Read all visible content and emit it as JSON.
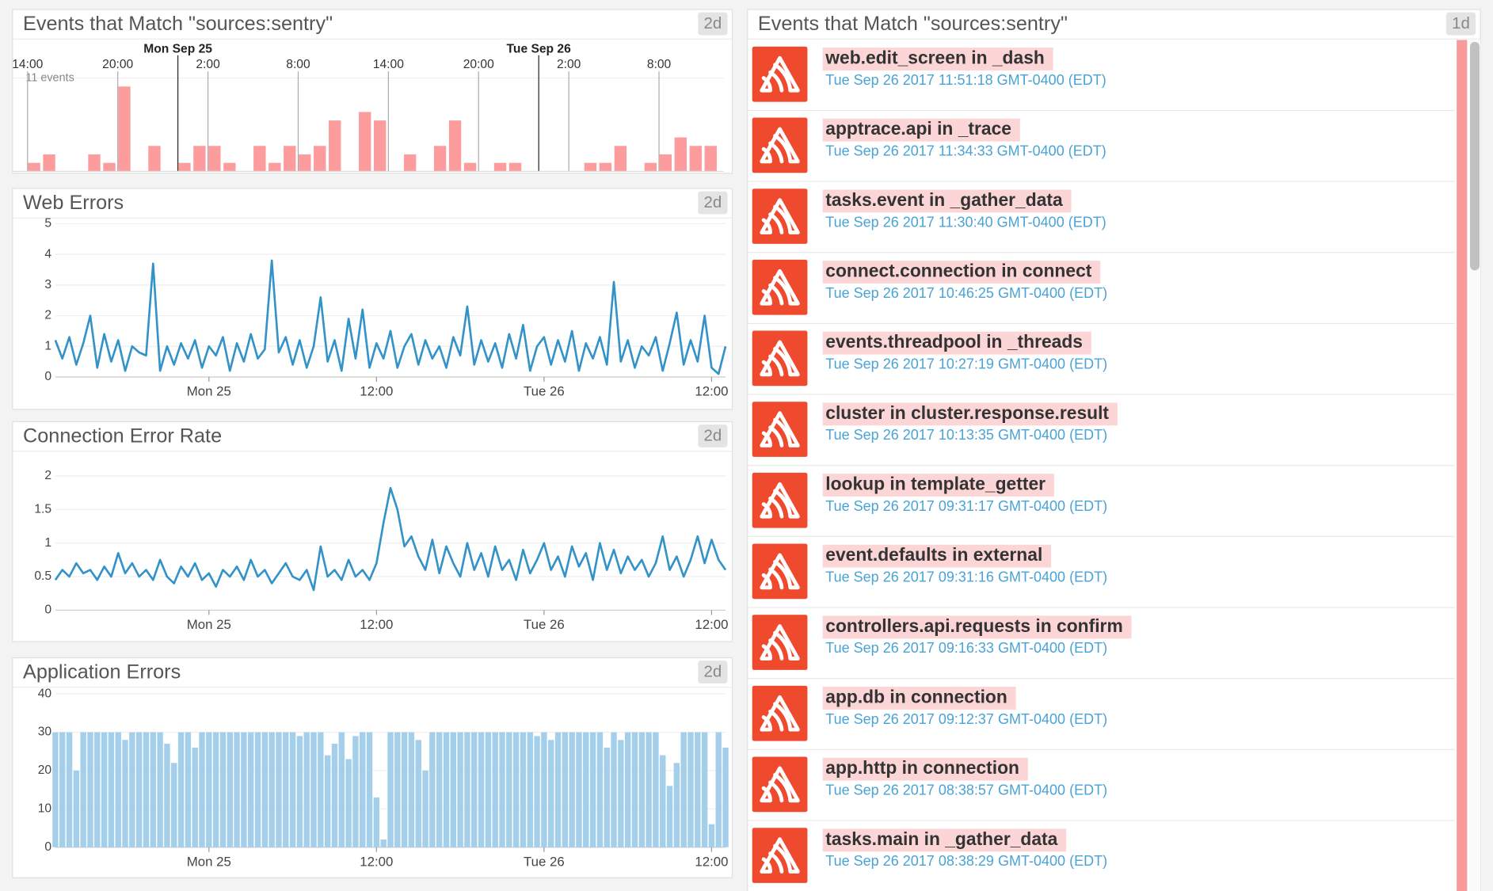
{
  "chart_data": [
    {
      "type": "timeline",
      "title": "Events that Match \"sources:sentry\"",
      "badge": "2d",
      "annotation": "11 events",
      "color": "#fc9c9c",
      "xlim": [
        -1,
        46.3
      ],
      "ylim": [
        0,
        11
      ],
      "xticks": [
        {
          "value": 0,
          "label": "14:00"
        },
        {
          "value": 6,
          "label": "20:00"
        },
        {
          "value": 12,
          "label": "2:00"
        },
        {
          "value": 18,
          "label": "8:00"
        },
        {
          "value": 24,
          "label": "14:00"
        },
        {
          "value": 30,
          "label": "20:00"
        },
        {
          "value": 36,
          "label": "2:00"
        },
        {
          "value": 42,
          "label": "8:00"
        }
      ],
      "day_markers": [
        {
          "value": 10,
          "label": "Mon Sep 25"
        },
        {
          "value": 34,
          "label": "Tue Sep 26"
        }
      ],
      "x": [
        0,
        1,
        4,
        5,
        6,
        8,
        10,
        11,
        12,
        13,
        15,
        16,
        17,
        18,
        19,
        20,
        22,
        23,
        25,
        27,
        28,
        29,
        31,
        32,
        37,
        38,
        39,
        41,
        42,
        43,
        44,
        45
      ],
      "values": [
        1,
        2,
        2,
        1,
        10,
        3,
        1,
        3,
        3,
        1,
        3,
        1,
        3,
        2,
        3,
        6,
        7,
        6,
        2,
        3,
        6,
        1,
        1,
        1,
        1,
        1,
        3,
        1,
        2,
        4,
        3,
        3
      ]
    },
    {
      "type": "line",
      "title": "Web Errors",
      "badge": "2d",
      "color": "#3393c8",
      "xlim": [
        -11,
        37
      ],
      "ylim": [
        0,
        5
      ],
      "yticks": [
        0,
        1,
        2,
        3,
        4,
        5
      ],
      "xticks": [
        {
          "value": 0,
          "label": "Mon 25"
        },
        {
          "value": 12,
          "label": "12:00"
        },
        {
          "value": 24,
          "label": "Tue 26"
        },
        {
          "value": 36,
          "label": "12:00"
        }
      ],
      "x": [
        -11,
        -10.5,
        -10,
        -9.5,
        -9,
        -8.5,
        -8,
        -7.5,
        -7,
        -6.5,
        -6,
        -5.5,
        -5,
        -4.5,
        -4,
        -3.5,
        -3,
        -2.5,
        -2,
        -1.5,
        -1,
        -0.5,
        0,
        0.5,
        1,
        1.5,
        2,
        2.5,
        3,
        3.5,
        4,
        4.5,
        5,
        5.5,
        6,
        6.5,
        7,
        7.5,
        8,
        8.5,
        9,
        9.5,
        10,
        10.5,
        11,
        11.5,
        12,
        12.5,
        13,
        13.5,
        14,
        14.5,
        15,
        15.5,
        16,
        16.5,
        17,
        17.5,
        18,
        18.5,
        19,
        19.5,
        20,
        20.5,
        21,
        21.5,
        22,
        22.5,
        23,
        23.5,
        24,
        24.5,
        25,
        25.5,
        26,
        26.5,
        27,
        27.5,
        28,
        28.5,
        29,
        29.5,
        30,
        30.5,
        31,
        31.5,
        32,
        32.5,
        33,
        33.5,
        34,
        34.5,
        35,
        35.5,
        36,
        36.5,
        37
      ],
      "values": [
        1.2,
        0.6,
        1.3,
        0.4,
        1.1,
        2,
        0.3,
        1.4,
        0.5,
        1.2,
        0.2,
        1,
        0.8,
        0.7,
        3.7,
        0.2,
        1,
        0.4,
        1.1,
        0.6,
        1.2,
        0.3,
        1,
        0.7,
        1.3,
        0.2,
        1.1,
        0.5,
        1.4,
        0.6,
        0.9,
        3.8,
        0.8,
        1.3,
        0.4,
        1.2,
        0.3,
        1,
        2.6,
        0.5,
        1.2,
        0.2,
        1.9,
        0.6,
        2.2,
        0.3,
        1.1,
        0.6,
        1.5,
        0.3,
        1,
        1.4,
        0.4,
        1.2,
        0.6,
        1,
        0.3,
        1.3,
        0.7,
        2.3,
        0.4,
        1.2,
        0.5,
        1.1,
        0.3,
        1.4,
        0.6,
        1.7,
        0.2,
        1,
        1.3,
        0.4,
        1.2,
        0.5,
        1.5,
        0.2,
        1.1,
        0.6,
        1.3,
        0.4,
        3.1,
        0.5,
        1.2,
        0.3,
        1,
        0.7,
        1.3,
        0.2,
        1.1,
        2.1,
        0.4,
        1.2,
        0.5,
        2,
        0.3,
        0.1,
        1
      ]
    },
    {
      "type": "line",
      "title": "Connection Error Rate",
      "badge": "2d",
      "color": "#3393c8",
      "xlim": [
        -11,
        37
      ],
      "ylim": [
        0,
        2
      ],
      "yticks": [
        0,
        0.5,
        1,
        1.5,
        2
      ],
      "xticks": [
        {
          "value": 0,
          "label": "Mon 25"
        },
        {
          "value": 12,
          "label": "12:00"
        },
        {
          "value": 24,
          "label": "Tue 26"
        },
        {
          "value": 36,
          "label": "12:00"
        }
      ],
      "x": [
        -11,
        -10.5,
        -10,
        -9.5,
        -9,
        -8.5,
        -8,
        -7.5,
        -7,
        -6.5,
        -6,
        -5.5,
        -5,
        -4.5,
        -4,
        -3.5,
        -3,
        -2.5,
        -2,
        -1.5,
        -1,
        -0.5,
        0,
        0.5,
        1,
        1.5,
        2,
        2.5,
        3,
        3.5,
        4,
        4.5,
        5,
        5.5,
        6,
        6.5,
        7,
        7.5,
        8,
        8.5,
        9,
        9.5,
        10,
        10.5,
        11,
        11.5,
        12,
        12.5,
        13,
        13.5,
        14,
        14.5,
        15,
        15.5,
        16,
        16.5,
        17,
        17.5,
        18,
        18.5,
        19,
        19.5,
        20,
        20.5,
        21,
        21.5,
        22,
        22.5,
        23,
        23.5,
        24,
        24.5,
        25,
        25.5,
        26,
        26.5,
        27,
        27.5,
        28,
        28.5,
        29,
        29.5,
        30,
        30.5,
        31,
        31.5,
        32,
        32.5,
        33,
        33.5,
        34,
        34.5,
        35,
        35.5,
        36,
        36.5,
        37
      ],
      "values": [
        0.45,
        0.6,
        0.5,
        0.7,
        0.55,
        0.6,
        0.45,
        0.65,
        0.5,
        0.85,
        0.55,
        0.7,
        0.5,
        0.6,
        0.45,
        0.75,
        0.5,
        0.4,
        0.65,
        0.5,
        0.7,
        0.45,
        0.55,
        0.35,
        0.6,
        0.5,
        0.65,
        0.45,
        0.75,
        0.5,
        0.6,
        0.4,
        0.55,
        0.7,
        0.5,
        0.45,
        0.6,
        0.3,
        0.95,
        0.5,
        0.6,
        0.45,
        0.75,
        0.5,
        0.6,
        0.45,
        0.7,
        1.3,
        1.82,
        1.5,
        0.95,
        1.1,
        0.8,
        0.6,
        1.05,
        0.55,
        0.95,
        0.7,
        0.5,
        1,
        0.6,
        0.85,
        0.5,
        0.95,
        0.6,
        0.75,
        0.45,
        0.9,
        0.55,
        0.75,
        1,
        0.6,
        0.8,
        0.5,
        0.95,
        0.65,
        0.85,
        0.45,
        1,
        0.6,
        0.9,
        0.55,
        0.8,
        0.6,
        0.75,
        0.5,
        0.7,
        1.1,
        0.6,
        0.8,
        0.5,
        0.75,
        1.1,
        0.7,
        1.05,
        0.75,
        0.6
      ]
    },
    {
      "type": "bar",
      "title": "Application Errors",
      "badge": "2d",
      "color": "#a3cfea",
      "xlim": [
        -11,
        37
      ],
      "ylim": [
        0,
        40
      ],
      "yticks": [
        0,
        10,
        20,
        30,
        40
      ],
      "xticks": [
        {
          "value": 0,
          "label": "Mon 25"
        },
        {
          "value": 12,
          "label": "12:00"
        },
        {
          "value": 24,
          "label": "Tue 26"
        },
        {
          "value": 36,
          "label": "12:00"
        }
      ],
      "x": [
        -11,
        -10.5,
        -10,
        -9.5,
        -9,
        -8.5,
        -8,
        -7.5,
        -7,
        -6.5,
        -6,
        -5.5,
        -5,
        -4.5,
        -4,
        -3.5,
        -3,
        -2.5,
        -2,
        -1.5,
        -1,
        -0.5,
        0,
        0.5,
        1,
        1.5,
        2,
        2.5,
        3,
        3.5,
        4,
        4.5,
        5,
        5.5,
        6,
        6.5,
        7,
        7.5,
        8,
        8.5,
        9,
        9.5,
        10,
        10.5,
        11,
        11.5,
        12,
        12.5,
        13,
        13.5,
        14,
        14.5,
        15,
        15.5,
        16,
        16.5,
        17,
        17.5,
        18,
        18.5,
        19,
        19.5,
        20,
        20.5,
        21,
        21.5,
        22,
        22.5,
        23,
        23.5,
        24,
        24.5,
        25,
        25.5,
        26,
        26.5,
        27,
        27.5,
        28,
        28.5,
        29,
        29.5,
        30,
        30.5,
        31,
        31.5,
        32,
        32.5,
        33,
        33.5,
        34,
        34.5,
        35,
        35.5,
        36,
        36.5,
        37
      ],
      "values": [
        30,
        30,
        30,
        20,
        30,
        30,
        30,
        30,
        30,
        30,
        28,
        30,
        30,
        30,
        30,
        30,
        27,
        22,
        30,
        30,
        26,
        30,
        30,
        30,
        30,
        30,
        30,
        30,
        30,
        30,
        30,
        30,
        30,
        30,
        30,
        29,
        30,
        30,
        30,
        24,
        27,
        30,
        23,
        29,
        30,
        30,
        13,
        2,
        30,
        30,
        30,
        30,
        28,
        20,
        30,
        30,
        30,
        30,
        30,
        30,
        30,
        30,
        30,
        30,
        30,
        30,
        30,
        30,
        30,
        29,
        30,
        28,
        30,
        30,
        30,
        30,
        30,
        30,
        30,
        26,
        30,
        28,
        30,
        30,
        30,
        30,
        30,
        24,
        16,
        22,
        30,
        30,
        30,
        30,
        6,
        30,
        26
      ]
    }
  ],
  "event_stream": {
    "title": "Events that Match \"sources:sentry\"",
    "badge": "1d",
    "events": [
      {
        "title": "web.edit_screen in _dash",
        "time": "Tue Sep 26 2017 11:51:18 GMT-0400 (EDT)"
      },
      {
        "title": "apptrace.api in _trace",
        "time": "Tue Sep 26 2017 11:34:33 GMT-0400 (EDT)"
      },
      {
        "title": "tasks.event in _gather_data",
        "time": "Tue Sep 26 2017 11:30:40 GMT-0400 (EDT)"
      },
      {
        "title": "connect.connection in connect",
        "time": "Tue Sep 26 2017 10:46:25 GMT-0400 (EDT)"
      },
      {
        "title": "events.threadpool in _threads",
        "time": "Tue Sep 26 2017 10:27:19 GMT-0400 (EDT)"
      },
      {
        "title": "cluster in cluster.response.result",
        "time": "Tue Sep 26 2017 10:13:35 GMT-0400 (EDT)"
      },
      {
        "title": "lookup in template_getter",
        "time": "Tue Sep 26 2017 09:31:17 GMT-0400 (EDT)"
      },
      {
        "title": "event.defaults in external",
        "time": "Tue Sep 26 2017 09:31:16 GMT-0400 (EDT)"
      },
      {
        "title": "controllers.api.requests in confirm",
        "time": "Tue Sep 26 2017 09:16:33 GMT-0400 (EDT)"
      },
      {
        "title": "app.db in connection",
        "time": "Tue Sep 26 2017 09:12:37 GMT-0400 (EDT)"
      },
      {
        "title": "app.http in connection",
        "time": "Tue Sep 26 2017 08:38:57 GMT-0400 (EDT)"
      },
      {
        "title": "tasks.main in _gather_data",
        "time": "Tue Sep 26 2017 08:38:29 GMT-0400 (EDT)"
      }
    ]
  }
}
